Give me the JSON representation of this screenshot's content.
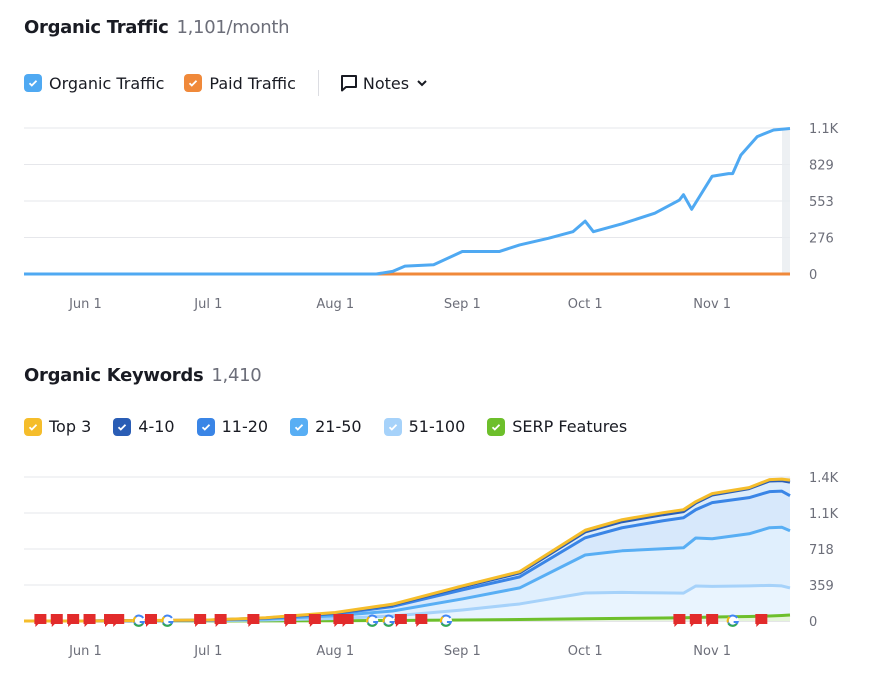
{
  "traffic": {
    "title": "Organic Traffic",
    "value": "1,101/month",
    "legend": [
      {
        "label": "Organic Traffic",
        "color": "#4fa9f2"
      },
      {
        "label": "Paid Traffic",
        "color": "#f0893a"
      }
    ],
    "notes_label": "Notes",
    "chart_data": {
      "type": "line",
      "x_ticks": [
        "Jun 1",
        "Jul 1",
        "Aug 1",
        "Sep 1",
        "Oct 1",
        "Nov 1"
      ],
      "y_ticks": [
        "1.1K",
        "829",
        "553",
        "276",
        "0"
      ],
      "ylim": [
        0,
        1105
      ],
      "xlim": [
        "05-17",
        "11-20"
      ],
      "grid": true,
      "series": [
        {
          "name": "Organic Traffic",
          "color": "#4fa9f2",
          "points": [
            [
              "05-17",
              0
            ],
            [
              "08-11",
              0
            ],
            [
              "08-15",
              20
            ],
            [
              "08-18",
              60
            ],
            [
              "08-25",
              70
            ],
            [
              "09-01",
              170
            ],
            [
              "09-10",
              170
            ],
            [
              "09-15",
              220
            ],
            [
              "09-22",
              270
            ],
            [
              "09-28",
              320
            ],
            [
              "10-01",
              400
            ],
            [
              "10-03",
              320
            ],
            [
              "10-10",
              380
            ],
            [
              "10-18",
              460
            ],
            [
              "10-24",
              560
            ],
            [
              "10-25",
              600
            ],
            [
              "10-27",
              490
            ],
            [
              "11-01",
              740
            ],
            [
              "11-05",
              760
            ],
            [
              "11-06",
              760
            ],
            [
              "11-08",
              900
            ],
            [
              "11-12",
              1040
            ],
            [
              "11-16",
              1090
            ],
            [
              "11-20",
              1101
            ]
          ]
        },
        {
          "name": "Paid Traffic",
          "color": "#f0893a",
          "points": [
            [
              "05-17",
              0
            ],
            [
              "11-20",
              0
            ]
          ]
        }
      ]
    }
  },
  "keywords": {
    "title": "Organic Keywords",
    "value": "1,410",
    "legend": [
      {
        "label": "Top 3",
        "color": "#f5bd2b"
      },
      {
        "label": "4-10",
        "color": "#2a5db5"
      },
      {
        "label": "11-20",
        "color": "#3a85e6"
      },
      {
        "label": "21-50",
        "color": "#58aef4"
      },
      {
        "label": "51-100",
        "color": "#a6d2fa"
      },
      {
        "label": "SERP Features",
        "color": "#6dbf2b"
      }
    ],
    "chart_data": {
      "type": "area",
      "x_ticks": [
        "Jun 1",
        "Jul 1",
        "Aug 1",
        "Sep 1",
        "Oct 1",
        "Nov 1"
      ],
      "y_ticks": [
        "1.4K",
        "1.1K",
        "718",
        "359",
        "0"
      ],
      "ylim": [
        0,
        1436
      ],
      "xlim": [
        "05-17",
        "11-20"
      ],
      "grid": true,
      "dates": [
        "05-17",
        "06-01",
        "07-01",
        "07-15",
        "08-01",
        "08-15",
        "09-01",
        "09-15",
        "10-01",
        "10-10",
        "10-20",
        "10-25",
        "10-28",
        "11-01",
        "11-10",
        "11-15",
        "11-18",
        "11-20"
      ],
      "series": [
        {
          "name": "Top 3",
          "color": "#f5bd2b",
          "values": [
            0,
            0,
            10,
            32,
            85,
            168,
            350,
            492,
            905,
            1010,
            1080,
            1110,
            1190,
            1270,
            1330,
            1410,
            1415,
            1405
          ]
        },
        {
          "name": "4-10",
          "color": "#2a5db5",
          "values": [
            0,
            0,
            9,
            30,
            80,
            160,
            340,
            479,
            888,
            990,
            1060,
            1090,
            1177,
            1256,
            1320,
            1396,
            1400,
            1385
          ]
        },
        {
          "name": "11-20",
          "color": "#3a85e6",
          "values": [
            0,
            0,
            8,
            27,
            72,
            145,
            310,
            440,
            830,
            930,
            1000,
            1030,
            1110,
            1180,
            1230,
            1290,
            1295,
            1250
          ]
        },
        {
          "name": "21-50",
          "color": "#58aef4",
          "values": [
            0,
            0,
            6,
            20,
            52,
            100,
            220,
            330,
            658,
            700,
            720,
            730,
            828,
            820,
            870,
            930,
            935,
            900
          ]
        },
        {
          "name": "51-100",
          "color": "#a6d2fa",
          "values": [
            0,
            0,
            3,
            10,
            25,
            50,
            110,
            170,
            279,
            285,
            280,
            278,
            349,
            345,
            350,
            355,
            350,
            330
          ]
        },
        {
          "name": "SERP Features",
          "color": "#6dbf2b",
          "values": [
            0,
            0,
            0,
            1,
            3,
            5,
            10,
            15,
            22,
            26,
            30,
            32,
            35,
            40,
            45,
            50,
            55,
            60
          ]
        }
      ],
      "notes": [
        {
          "date": "05-21",
          "type": "flag"
        },
        {
          "date": "05-25",
          "type": "flag"
        },
        {
          "date": "05-29",
          "type": "flag"
        },
        {
          "date": "06-02",
          "type": "flag"
        },
        {
          "date": "06-07",
          "type": "flag"
        },
        {
          "date": "06-09",
          "type": "flag"
        },
        {
          "date": "06-14",
          "type": "google"
        },
        {
          "date": "06-17",
          "type": "flag"
        },
        {
          "date": "06-21",
          "type": "google"
        },
        {
          "date": "06-29",
          "type": "flag"
        },
        {
          "date": "07-04",
          "type": "flag"
        },
        {
          "date": "07-12",
          "type": "flag"
        },
        {
          "date": "07-21",
          "type": "flag"
        },
        {
          "date": "07-27",
          "type": "flag"
        },
        {
          "date": "08-02",
          "type": "flag"
        },
        {
          "date": "08-04",
          "type": "flag"
        },
        {
          "date": "08-10",
          "type": "google"
        },
        {
          "date": "08-14",
          "type": "google"
        },
        {
          "date": "08-17",
          "type": "flag"
        },
        {
          "date": "08-22",
          "type": "flag"
        },
        {
          "date": "08-28",
          "type": "google"
        },
        {
          "date": "10-24",
          "type": "flag"
        },
        {
          "date": "10-28",
          "type": "flag"
        },
        {
          "date": "11-01",
          "type": "flag"
        },
        {
          "date": "11-06",
          "type": "google"
        },
        {
          "date": "11-13",
          "type": "flag"
        }
      ]
    }
  }
}
